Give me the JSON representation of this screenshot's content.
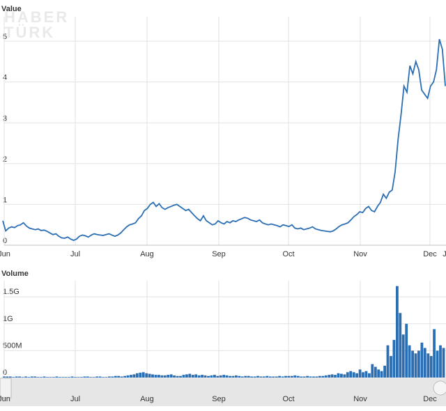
{
  "watermark": [
    "HABER",
    "TÜRK"
  ],
  "chart_data": [
    {
      "type": "line",
      "ylabel": "Value",
      "ylim": [
        0,
        5.6
      ],
      "yticks": [
        0,
        1,
        2,
        3,
        4,
        5
      ],
      "x_labels": [
        "Jun",
        "Jul",
        "Aug",
        "Sep",
        "Oct",
        "Nov",
        "Dec",
        "J"
      ],
      "grid": true,
      "color": "#2a6eb3",
      "series": [
        {
          "values": [
            0.6,
            0.35,
            0.42,
            0.45,
            0.43,
            0.48,
            0.5,
            0.55,
            0.47,
            0.42,
            0.4,
            0.38,
            0.4,
            0.36,
            0.37,
            0.34,
            0.3,
            0.26,
            0.28,
            0.22,
            0.18,
            0.17,
            0.2,
            0.15,
            0.12,
            0.15,
            0.22,
            0.25,
            0.23,
            0.2,
            0.25,
            0.28,
            0.26,
            0.25,
            0.24,
            0.26,
            0.28,
            0.25,
            0.22,
            0.25,
            0.3,
            0.38,
            0.45,
            0.5,
            0.52,
            0.55,
            0.65,
            0.72,
            0.85,
            0.9,
            1.0,
            1.05,
            0.95,
            1.02,
            0.92,
            0.88,
            0.92,
            0.95,
            0.98,
            1.0,
            0.95,
            0.9,
            0.85,
            0.88,
            0.8,
            0.72,
            0.65,
            0.6,
            0.72,
            0.6,
            0.55,
            0.5,
            0.52,
            0.6,
            0.55,
            0.52,
            0.58,
            0.55,
            0.6,
            0.58,
            0.62,
            0.65,
            0.68,
            0.66,
            0.62,
            0.6,
            0.58,
            0.62,
            0.55,
            0.52,
            0.5,
            0.52,
            0.5,
            0.48,
            0.45,
            0.5,
            0.48,
            0.46,
            0.5,
            0.42,
            0.4,
            0.42,
            0.38,
            0.4,
            0.42,
            0.45,
            0.4,
            0.38,
            0.36,
            0.35,
            0.34,
            0.33,
            0.35,
            0.4,
            0.46,
            0.5,
            0.52,
            0.55,
            0.62,
            0.7,
            0.75,
            0.82,
            0.8,
            0.9,
            0.95,
            0.85,
            0.82,
            0.95,
            1.05,
            1.25,
            1.15,
            1.3,
            1.35,
            1.8,
            2.6,
            3.2,
            3.9,
            3.75,
            4.4,
            4.2,
            4.5,
            4.3,
            3.8,
            3.7,
            3.6,
            3.9,
            4.0,
            4.3,
            5.05,
            4.8,
            3.9
          ],
          "x_start": "Jun",
          "x_end": "J"
        }
      ]
    },
    {
      "type": "bar",
      "ylabel": "Volume",
      "ylim": [
        0,
        1.8
      ],
      "ytick_labels": [
        "0",
        "500M",
        "1G",
        "1.5G"
      ],
      "yticks": [
        0,
        0.5,
        1.0,
        1.5
      ],
      "x_labels": [
        "Jun",
        "Jul",
        "Aug",
        "Sep",
        "Oct",
        "Nov",
        "Dec"
      ],
      "grid": true,
      "color": "#2a6eb3",
      "values": [
        0.02,
        0.02,
        0.02,
        0.01,
        0.02,
        0.02,
        0.01,
        0.02,
        0.01,
        0.02,
        0.02,
        0.01,
        0.01,
        0.02,
        0.01,
        0.01,
        0.01,
        0.02,
        0.01,
        0.01,
        0.01,
        0.01,
        0.02,
        0.01,
        0.01,
        0.01,
        0.02,
        0.02,
        0.01,
        0.01,
        0.02,
        0.02,
        0.01,
        0.01,
        0.02,
        0.02,
        0.03,
        0.03,
        0.02,
        0.03,
        0.04,
        0.05,
        0.06,
        0.08,
        0.09,
        0.1,
        0.08,
        0.07,
        0.06,
        0.05,
        0.05,
        0.04,
        0.04,
        0.05,
        0.06,
        0.04,
        0.03,
        0.03,
        0.05,
        0.06,
        0.07,
        0.05,
        0.06,
        0.04,
        0.05,
        0.04,
        0.03,
        0.04,
        0.05,
        0.03,
        0.04,
        0.05,
        0.04,
        0.03,
        0.03,
        0.04,
        0.03,
        0.02,
        0.03,
        0.03,
        0.02,
        0.02,
        0.03,
        0.02,
        0.02,
        0.03,
        0.02,
        0.02,
        0.02,
        0.03,
        0.02,
        0.03,
        0.03,
        0.03,
        0.04,
        0.03,
        0.02,
        0.02,
        0.03,
        0.02,
        0.02,
        0.02,
        0.03,
        0.03,
        0.04,
        0.05,
        0.06,
        0.05,
        0.08,
        0.07,
        0.06,
        0.1,
        0.12,
        0.1,
        0.08,
        0.15,
        0.1,
        0.12,
        0.08,
        0.25,
        0.2,
        0.15,
        0.12,
        0.22,
        0.6,
        0.4,
        0.7,
        1.7,
        1.2,
        0.8,
        1.0,
        0.6,
        0.5,
        0.45,
        0.5,
        0.65,
        0.55,
        0.45,
        0.4,
        0.9,
        0.5,
        0.6,
        0.55
      ]
    }
  ],
  "navigator": {
    "x_labels": [
      "Jun",
      "Jul",
      "Aug",
      "Sep",
      "Oct",
      "Nov",
      "Dec"
    ]
  }
}
